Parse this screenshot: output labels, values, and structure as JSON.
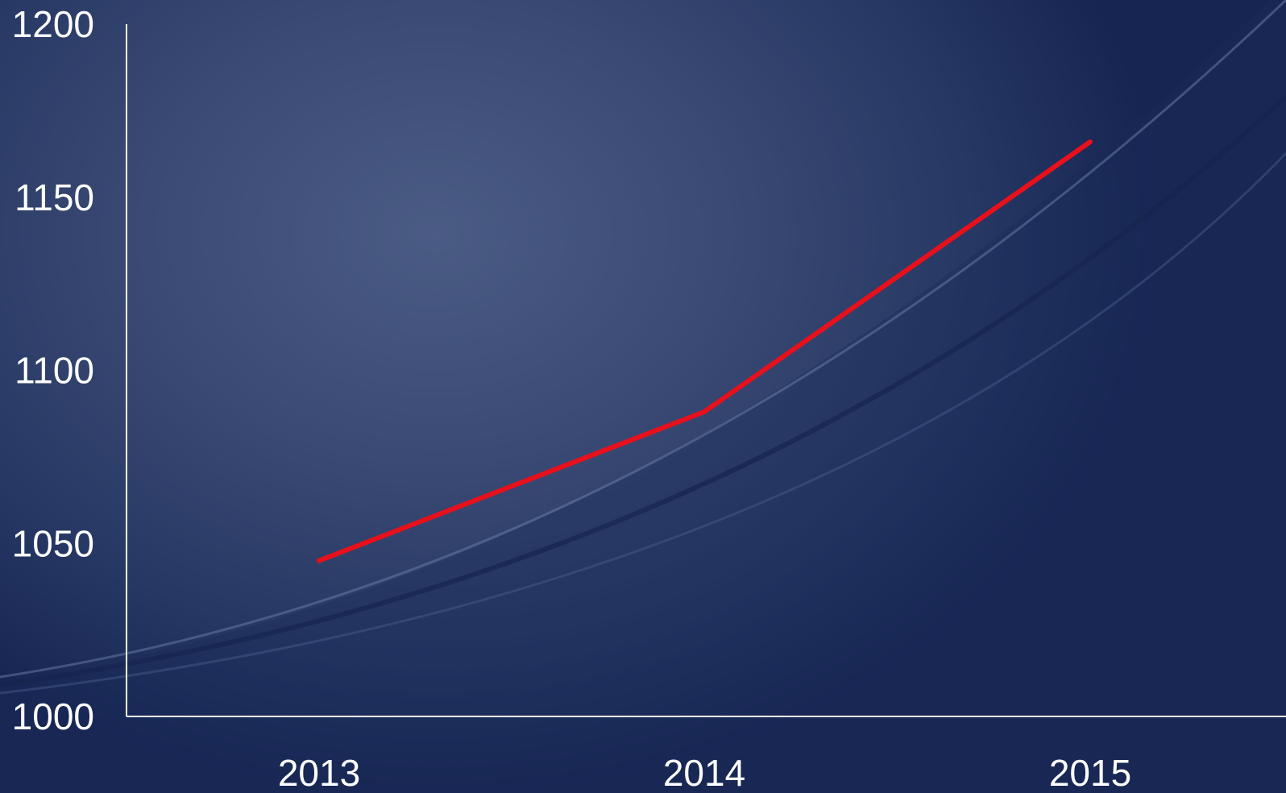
{
  "chart_data": {
    "type": "line",
    "categories": [
      "2013",
      "2014",
      "2015"
    ],
    "series": [
      {
        "values": [
          1045,
          1088,
          1166
        ],
        "color": "#e8101b"
      }
    ],
    "ylim": [
      1000,
      1200
    ],
    "yticks": [
      "1000",
      "1050",
      "1100",
      "1150",
      "1200"
    ],
    "grid": false,
    "legend": "none"
  }
}
